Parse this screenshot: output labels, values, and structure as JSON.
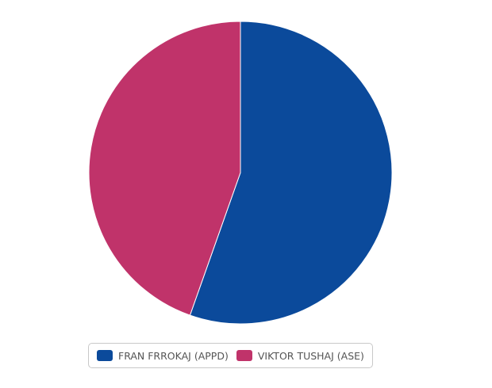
{
  "chart_data": {
    "type": "pie",
    "title": "",
    "legend_position": "bottom",
    "series": [
      {
        "name": "FRAN FRROKAJ (APPD)",
        "value": 55.4,
        "color": "#0b4a9b"
      },
      {
        "name": "VIKTOR TUSHAJ (ASE)",
        "value": 44.6,
        "color": "#c0336a"
      }
    ]
  }
}
